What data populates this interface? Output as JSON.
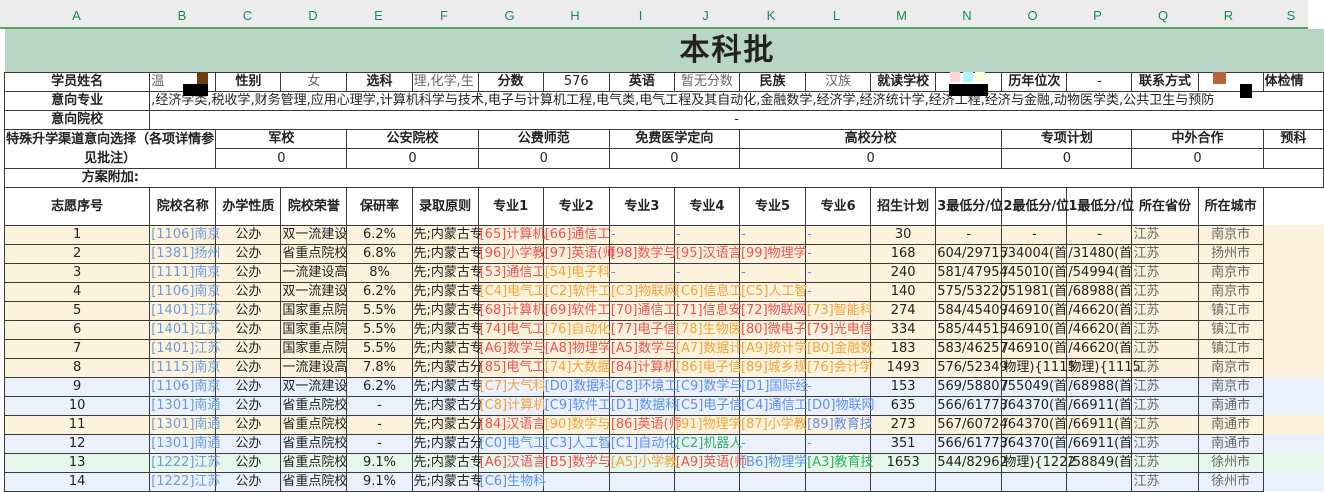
{
  "columns": [
    "A",
    "B",
    "C",
    "D",
    "E",
    "F",
    "G",
    "H",
    "I",
    "J",
    "K",
    "L",
    "M",
    "N",
    "O",
    "P",
    "Q",
    "R",
    "S"
  ],
  "title": "本科批",
  "student": {
    "name_label": "学员姓名",
    "name_value": "温",
    "gender_label": "性别",
    "gender_value": "女",
    "subjects_label": "选科",
    "subjects_value": "理,化学,生",
    "score_label": "分数",
    "score_value": "576",
    "english_label": "英语",
    "english_value": "暂无分数",
    "ethnicity_label": "民族",
    "ethnicity_value": "汉族",
    "school_label": "就读学校",
    "rank_label": "历年位次",
    "rank_value": "-",
    "contact_label": "联系方式",
    "health_label": "体检情"
  },
  "intended_majors": {
    "label": "意向专业",
    "value": ",经济学类,税收学,财务管理,应用心理学,计算机科学与技术,电子与计算机工程,电气类,电气工程及其自动化,金融数学,经济学,经济统计学,经济工程,经济与金融,动物医学类,公共卫生与预防"
  },
  "intended_schools": {
    "label": "意向院校",
    "value": "-"
  },
  "special": {
    "label": "特殊升学渠道意向选择（各项详情参见批注）",
    "items": [
      {
        "label": "军校",
        "value": "0"
      },
      {
        "label": "公安院校",
        "value": "0"
      },
      {
        "label": "公费师范",
        "value": "0"
      },
      {
        "label": "免费医学定向",
        "value": "0"
      },
      {
        "label": "高校分校",
        "value": "0"
      },
      {
        "label": "专项计划",
        "value": "0"
      },
      {
        "label": "中外合作",
        "value": "0"
      },
      {
        "label": "预科",
        "value": ""
      }
    ]
  },
  "plan_addition_label": "方案附加:",
  "table_headers": [
    "志愿序号",
    "院校名称",
    "办学性质",
    "院校荣誉",
    "保研率",
    "录取原则",
    "专业1",
    "专业2",
    "专业3",
    "专业4",
    "专业5",
    "专业6",
    "招生计划",
    "3最低分/位",
    "2最低分/位",
    "1最低分/位",
    "所在省份",
    "所在城市"
  ],
  "row_colors": {
    "yellow": "#fdf3dc",
    "blue": "#eaf1fc",
    "green": "#e6f6ea"
  },
  "major_colors": {
    "red": "#f0504f",
    "orange": "#f2a33a",
    "blue": "#5b8ff9",
    "green": "#2db55d"
  },
  "rows": [
    {
      "no": "1",
      "bg": "yellow",
      "school": "[1106]南京",
      "type": "公办",
      "honor": "双一流建设",
      "rate": "6.2%",
      "rule": "先;内蒙古专",
      "majors": [
        [
          "[65]计算机",
          "red"
        ],
        [
          "[66]通信工",
          "red"
        ],
        [
          "-",
          "blue"
        ],
        [
          "-",
          "blue"
        ],
        [
          "-",
          "blue"
        ],
        [
          "-",
          "blue"
        ]
      ],
      "plan": "30",
      "s3": "-",
      "s2": "-",
      "s1": "-",
      "province": "江苏",
      "city": "南京市"
    },
    {
      "no": "2",
      "bg": "yellow",
      "school": "[1381]扬州",
      "type": "公办",
      "honor": "省重点院校",
      "rate": "6.8%",
      "rule": "先;内蒙古专",
      "majors": [
        [
          "[96]小学教",
          "red"
        ],
        [
          "[97]英语(师",
          "red"
        ],
        [
          "[98]数学与",
          "red"
        ],
        [
          "[95]汉语言",
          "red"
        ],
        [
          "[99]物理学",
          "red"
        ],
        [
          "-",
          "blue"
        ]
      ],
      "plan": "168",
      "s3": "604/29715",
      "s2": "/34004(首",
      "s1": "/31480(首",
      "province": "江苏",
      "city": "扬州市"
    },
    {
      "no": "3",
      "bg": "yellow",
      "school": "[1111]南京",
      "type": "公办",
      "honor": "一流建设高",
      "rate": "8%",
      "rule": "先;内蒙古专",
      "majors": [
        [
          "[53]通信工",
          "red"
        ],
        [
          "[54]电子科",
          "orange"
        ],
        [
          "-",
          "blue"
        ],
        [
          "-",
          "blue"
        ],
        [
          "-",
          "blue"
        ],
        [
          "-",
          "blue"
        ]
      ],
      "plan": "240",
      "s3": "581/47954",
      "s2": "/45010(首",
      "s1": "/54994(首",
      "province": "江苏",
      "city": "南京市"
    },
    {
      "no": "4",
      "bg": "yellow",
      "school": "[1106]南京",
      "type": "公办",
      "honor": "双一流建设",
      "rate": "6.2%",
      "rule": "先;内蒙古专",
      "majors": [
        [
          "[C4]电气工",
          "orange"
        ],
        [
          "[C2]软件工",
          "orange"
        ],
        [
          "[C3]物联网",
          "orange"
        ],
        [
          "[C6]信息工",
          "orange"
        ],
        [
          "[C5]人工智",
          "orange"
        ],
        [
          "-",
          "blue"
        ]
      ],
      "plan": "140",
      "s3": "575/53220",
      "s2": "/51981(首",
      "s1": "/68988(首",
      "province": "江苏",
      "city": "南京市"
    },
    {
      "no": "5",
      "bg": "yellow",
      "school": "[1401]江苏",
      "type": "公办",
      "honor": "国家重点院",
      "rate": "5.5%",
      "rule": "先;内蒙古专",
      "majors": [
        [
          "[68]计算机",
          "red"
        ],
        [
          "[69]软件工",
          "red"
        ],
        [
          "[70]通信工",
          "red"
        ],
        [
          "[71]信息安",
          "red"
        ],
        [
          "[72]物联网",
          "red"
        ],
        [
          "[73]智能科",
          "orange"
        ]
      ],
      "plan": "274",
      "s3": "584/45409",
      "s2": "/46910(首",
      "s1": "/46620(首",
      "province": "江苏",
      "city": "镇江市"
    },
    {
      "no": "6",
      "bg": "yellow",
      "school": "[1401]江苏",
      "type": "公办",
      "honor": "国家重点院",
      "rate": "5.5%",
      "rule": "先;内蒙古专",
      "majors": [
        [
          "[74]电气工",
          "red"
        ],
        [
          "[76]自动化",
          "orange"
        ],
        [
          "[77]电子信",
          "red"
        ],
        [
          "[78]生物医",
          "orange"
        ],
        [
          "[80]微电子",
          "red"
        ],
        [
          "[79]光电信",
          "red"
        ]
      ],
      "plan": "334",
      "s3": "585/44515",
      "s2": "/46910(首",
      "s1": "/46620(首",
      "province": "江苏",
      "city": "镇江市"
    },
    {
      "no": "7",
      "bg": "yellow",
      "school": "[1401]江苏",
      "type": "公办",
      "honor": "国家重点院",
      "rate": "5.5%",
      "rule": "先;内蒙古专",
      "majors": [
        [
          "[A6]数学与",
          "red"
        ],
        [
          "[A8]物理学",
          "red"
        ],
        [
          "[A5]数学与",
          "red"
        ],
        [
          "[A7]数据计",
          "orange"
        ],
        [
          "[A9]统计学",
          "orange"
        ],
        [
          "[B0]金融数",
          "orange"
        ]
      ],
      "plan": "183",
      "s3": "583/46257",
      "s2": "/46910(首",
      "s1": "/46620(首",
      "province": "江苏",
      "city": "镇江市"
    },
    {
      "no": "8",
      "bg": "yellow",
      "school": "[1115]南京",
      "type": "公办",
      "honor": "一流建设高",
      "rate": "7.8%",
      "rule": "先;内蒙古分",
      "majors": [
        [
          "[85]电气工",
          "red"
        ],
        [
          "[74]大数据",
          "orange"
        ],
        [
          "[84]计算机",
          "red"
        ],
        [
          "[86]电子信",
          "orange"
        ],
        [
          "[89]城乡规",
          "orange"
        ],
        [
          "[76]会计学",
          "orange"
        ]
      ],
      "plan": "1493",
      "s3": "576/52349",
      "s2": "物理){1115",
      "s1": "物理){1115",
      "province": "江苏",
      "city": "南京市"
    },
    {
      "no": "9",
      "bg": "blue",
      "school": "[1106]南京",
      "type": "公办",
      "honor": "双一流建设",
      "rate": "6.2%",
      "rule": "先;内蒙古专",
      "majors": [
        [
          "[C7]大气科",
          "orange"
        ],
        [
          "[D0]数据科",
          "blue"
        ],
        [
          "[C8]环境工",
          "blue"
        ],
        [
          "[C9]数学与",
          "blue"
        ],
        [
          "[D1]国际经",
          "blue"
        ],
        [
          "-",
          "blue"
        ]
      ],
      "plan": "153",
      "s3": "569/58807",
      "s2": "/55049(首",
      "s1": "/68988(首",
      "province": "江苏",
      "city": "南京市"
    },
    {
      "no": "10",
      "bg": "blue",
      "school": "[1301]南通",
      "type": "公办",
      "honor": "省重点院校",
      "rate": "-",
      "rule": "先;内蒙古分",
      "majors": [
        [
          "[C8]计算机",
          "orange"
        ],
        [
          "[C9]软件工",
          "blue"
        ],
        [
          "[D1]数据科",
          "blue"
        ],
        [
          "[C5]电子信",
          "blue"
        ],
        [
          "[C4]通信工",
          "blue"
        ],
        [
          "[D0]物联网",
          "blue"
        ]
      ],
      "plan": "635",
      "s3": "566/61773",
      "s2": "/64370(首",
      "s1": "/66911(首",
      "province": "江苏",
      "city": "南通市"
    },
    {
      "no": "11",
      "bg": "yellow",
      "school": "[1301]南通",
      "type": "公办",
      "honor": "省重点院校",
      "rate": "-",
      "rule": "先;内蒙古分",
      "majors": [
        [
          "[84]汉语言",
          "red"
        ],
        [
          "[90]数学与",
          "orange"
        ],
        [
          "[86]英语(师",
          "red"
        ],
        [
          "[91]物理学",
          "orange"
        ],
        [
          "[87]小学教",
          "orange"
        ],
        [
          "[89]教育技",
          "blue"
        ]
      ],
      "plan": "273",
      "s3": "567/60724",
      "s2": "/64370(首",
      "s1": "/66911(首",
      "province": "江苏",
      "city": "南通市"
    },
    {
      "no": "12",
      "bg": "blue",
      "school": "[1301]南通",
      "type": "公办",
      "honor": "省重点院校",
      "rate": "-",
      "rule": "先;内蒙古分",
      "majors": [
        [
          "[C0]电气工",
          "blue"
        ],
        [
          "[C3]人工智",
          "blue"
        ],
        [
          "[C1]自动化",
          "blue"
        ],
        [
          "[C2]机器人",
          "green"
        ],
        [
          "-",
          "blue"
        ],
        [
          "-",
          "blue"
        ]
      ],
      "plan": "351",
      "s3": "566/61773",
      "s2": "/64370(首",
      "s1": "/66911(首",
      "province": "江苏",
      "city": "南通市"
    },
    {
      "no": "13",
      "bg": "green",
      "school": "[1222]江苏",
      "type": "公办",
      "honor": "省重点院校",
      "rate": "9.1%",
      "rule": "先;内蒙古专",
      "majors": [
        [
          "[A6]汉语言",
          "red"
        ],
        [
          "[B5]数学与",
          "red"
        ],
        [
          "[A5]小学教",
          "orange"
        ],
        [
          "[A9]英语(师",
          "red"
        ],
        [
          "[B6]物理学",
          "blue"
        ],
        [
          "[A3]教育技",
          "green"
        ]
      ],
      "plan": "1653",
      "s3": "544/82962",
      "s2": "物理){1222",
      "s1": "/58849(首",
      "province": "江苏",
      "city": "徐州市"
    },
    {
      "no": "14",
      "bg": "blue",
      "school": "[1222]江苏",
      "type": "公办",
      "honor": "省重点院校",
      "rate": "9.1%",
      "rule": "先;内蒙古专",
      "majors": [
        [
          "[C6]生物科",
          "blue"
        ],
        [
          "",
          "blue"
        ],
        [
          "",
          "blue"
        ],
        [
          "",
          "blue"
        ],
        [
          "",
          "blue"
        ],
        [
          "",
          "blue"
        ]
      ],
      "plan": "",
      "s3": "",
      "s2": "",
      "s1": "",
      "province": "江苏",
      "city": "徐州市"
    }
  ]
}
